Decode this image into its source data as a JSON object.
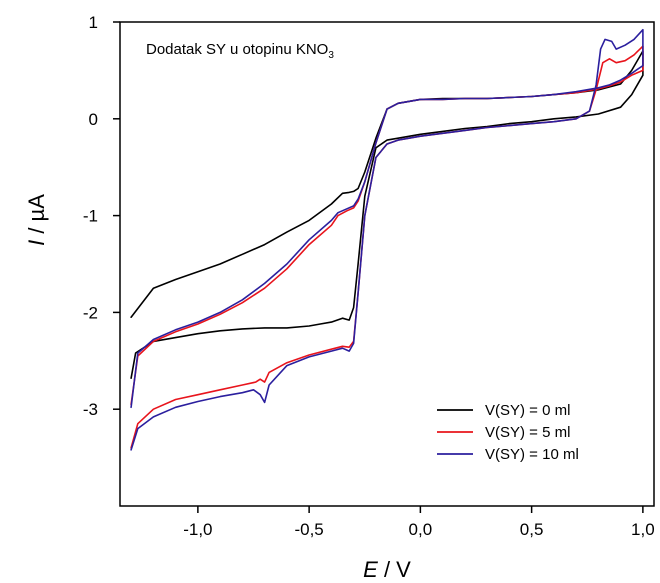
{
  "chart_data": {
    "type": "line",
    "annotation": {
      "text": "Dodatak SY u otopinu KNO",
      "subscript": "3"
    },
    "xlabel": {
      "italic": "E",
      "rest": " / V"
    },
    "ylabel": {
      "italic": "I",
      "rest": " / µA"
    },
    "xlim": [
      -1.35,
      1.05
    ],
    "ylim": [
      -4.0,
      1.0
    ],
    "xticks": [
      -1.0,
      -0.5,
      0.0,
      0.5,
      1.0
    ],
    "xtick_labels": [
      "-1,0",
      "-0,5",
      "0,0",
      "0,5",
      "1,0"
    ],
    "yticks": [
      -3,
      -2,
      -1,
      0,
      1
    ],
    "ytick_labels": [
      "-3",
      "-2",
      "-1",
      "0",
      "1"
    ],
    "legend_position": "lower-right",
    "series": [
      {
        "name": "V(SY) = 0 ml",
        "color": "#000000",
        "x": [
          -1.3,
          -1.28,
          -1.2,
          -1.1,
          -1.0,
          -0.9,
          -0.8,
          -0.7,
          -0.6,
          -0.5,
          -0.45,
          -0.4,
          -0.35,
          -0.32,
          -0.3,
          -0.28,
          -0.25,
          -0.2,
          -0.15,
          -0.1,
          0.0,
          0.1,
          0.2,
          0.3,
          0.4,
          0.5,
          0.6,
          0.7,
          0.8,
          0.9,
          0.95,
          1.0,
          1.0,
          0.95,
          0.9,
          0.8,
          0.7,
          0.6,
          0.5,
          0.4,
          0.3,
          0.2,
          0.1,
          0.0,
          -0.1,
          -0.15,
          -0.2,
          -0.25,
          -0.28,
          -0.3,
          -0.32,
          -0.35,
          -0.4,
          -0.5,
          -0.6,
          -0.7,
          -0.8,
          -0.9,
          -1.0,
          -1.1,
          -1.2,
          -1.3
        ],
        "y": [
          -2.68,
          -2.42,
          -2.3,
          -2.26,
          -2.22,
          -2.19,
          -2.17,
          -2.16,
          -2.16,
          -2.14,
          -2.12,
          -2.1,
          -2.06,
          -2.08,
          -1.95,
          -1.5,
          -0.8,
          -0.3,
          -0.22,
          -0.2,
          -0.16,
          -0.13,
          -0.1,
          -0.08,
          -0.05,
          -0.03,
          0.0,
          0.02,
          0.05,
          0.12,
          0.25,
          0.45,
          0.7,
          0.5,
          0.36,
          0.3,
          0.27,
          0.25,
          0.23,
          0.22,
          0.21,
          0.21,
          0.21,
          0.2,
          0.16,
          0.1,
          -0.2,
          -0.55,
          -0.72,
          -0.75,
          -0.76,
          -0.77,
          -0.88,
          -1.05,
          -1.17,
          -1.3,
          -1.4,
          -1.5,
          -1.58,
          -1.66,
          -1.75,
          -2.05
        ]
      },
      {
        "name": "V(SY) = 5 ml",
        "color": "#e8141c",
        "x": [
          -1.3,
          -1.27,
          -1.2,
          -1.1,
          -1.0,
          -0.9,
          -0.8,
          -0.74,
          -0.72,
          -0.7,
          -0.68,
          -0.6,
          -0.5,
          -0.4,
          -0.35,
          -0.32,
          -0.3,
          -0.28,
          -0.25,
          -0.2,
          -0.15,
          -0.1,
          0.0,
          0.1,
          0.2,
          0.3,
          0.4,
          0.5,
          0.6,
          0.7,
          0.76,
          0.79,
          0.82,
          0.85,
          0.88,
          0.92,
          0.96,
          1.0,
          1.0,
          0.95,
          0.9,
          0.85,
          0.8,
          0.7,
          0.6,
          0.5,
          0.4,
          0.3,
          0.2,
          0.1,
          0.0,
          -0.1,
          -0.15,
          -0.2,
          -0.25,
          -0.28,
          -0.3,
          -0.33,
          -0.37,
          -0.4,
          -0.5,
          -0.6,
          -0.7,
          -0.8,
          -0.9,
          -1.0,
          -1.1,
          -1.2,
          -1.27,
          -1.3
        ],
        "y": [
          -3.4,
          -3.15,
          -3.0,
          -2.9,
          -2.85,
          -2.8,
          -2.75,
          -2.72,
          -2.69,
          -2.72,
          -2.62,
          -2.52,
          -2.44,
          -2.38,
          -2.35,
          -2.36,
          -2.3,
          -1.8,
          -1.0,
          -0.4,
          -0.26,
          -0.22,
          -0.18,
          -0.15,
          -0.12,
          -0.09,
          -0.07,
          -0.05,
          -0.03,
          0.0,
          0.08,
          0.3,
          0.58,
          0.62,
          0.58,
          0.6,
          0.66,
          0.75,
          0.5,
          0.45,
          0.38,
          0.34,
          0.31,
          0.27,
          0.25,
          0.23,
          0.22,
          0.21,
          0.21,
          0.2,
          0.2,
          0.16,
          0.1,
          -0.25,
          -0.65,
          -0.85,
          -0.92,
          -0.95,
          -1.0,
          -1.1,
          -1.3,
          -1.55,
          -1.75,
          -1.9,
          -2.02,
          -2.12,
          -2.2,
          -2.3,
          -2.45,
          -2.95
        ]
      },
      {
        "name": "V(SY) = 10 ml",
        "color": "#2b1f9e",
        "x": [
          -1.3,
          -1.27,
          -1.2,
          -1.1,
          -1.0,
          -0.9,
          -0.8,
          -0.75,
          -0.72,
          -0.7,
          -0.68,
          -0.6,
          -0.5,
          -0.4,
          -0.35,
          -0.32,
          -0.3,
          -0.28,
          -0.25,
          -0.2,
          -0.15,
          -0.1,
          0.0,
          0.1,
          0.2,
          0.3,
          0.4,
          0.5,
          0.6,
          0.7,
          0.76,
          0.79,
          0.81,
          0.83,
          0.86,
          0.88,
          0.92,
          0.96,
          1.0,
          1.0,
          0.95,
          0.9,
          0.85,
          0.8,
          0.7,
          0.6,
          0.5,
          0.4,
          0.3,
          0.2,
          0.1,
          0.0,
          -0.1,
          -0.15,
          -0.2,
          -0.25,
          -0.28,
          -0.3,
          -0.33,
          -0.37,
          -0.4,
          -0.5,
          -0.6,
          -0.7,
          -0.8,
          -0.9,
          -1.0,
          -1.1,
          -1.2,
          -1.27,
          -1.3
        ],
        "y": [
          -3.42,
          -3.2,
          -3.08,
          -2.98,
          -2.92,
          -2.87,
          -2.83,
          -2.8,
          -2.85,
          -2.93,
          -2.75,
          -2.55,
          -2.46,
          -2.4,
          -2.37,
          -2.4,
          -2.32,
          -1.8,
          -1.0,
          -0.4,
          -0.26,
          -0.22,
          -0.18,
          -0.15,
          -0.12,
          -0.09,
          -0.07,
          -0.05,
          -0.03,
          0.0,
          0.08,
          0.35,
          0.72,
          0.82,
          0.8,
          0.72,
          0.76,
          0.82,
          0.92,
          0.55,
          0.47,
          0.4,
          0.35,
          0.32,
          0.28,
          0.25,
          0.23,
          0.22,
          0.21,
          0.21,
          0.2,
          0.2,
          0.16,
          0.1,
          -0.25,
          -0.65,
          -0.83,
          -0.9,
          -0.93,
          -0.97,
          -1.05,
          -1.25,
          -1.5,
          -1.7,
          -1.87,
          -2.0,
          -2.1,
          -2.18,
          -2.28,
          -2.42,
          -2.98
        ]
      }
    ]
  }
}
